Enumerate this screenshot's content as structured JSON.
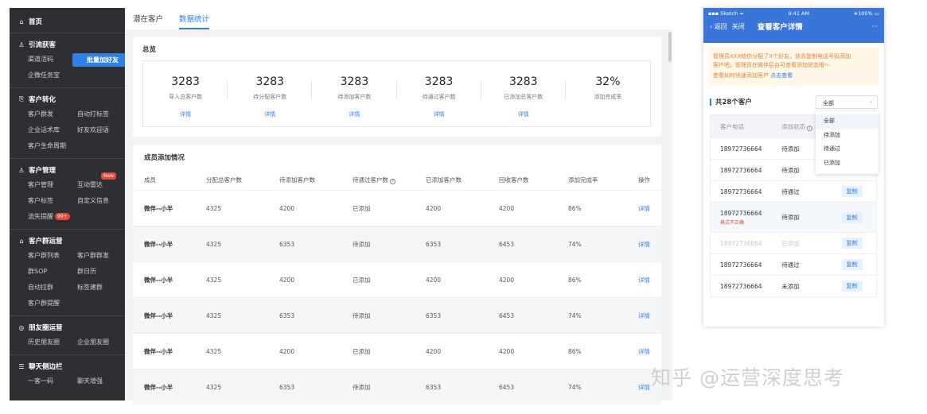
{
  "sidebar": {
    "home": "首页",
    "sections": [
      {
        "title": "引流获客",
        "icon": "person-add-icon",
        "items": [
          "渠道活码",
          "批量加好友",
          "企微任务宝"
        ],
        "active": 1
      },
      {
        "title": "客户转化",
        "icon": "convert-icon",
        "items": [
          "客户群发",
          "自动打标签",
          "企业话术库",
          "好友欢迎语",
          "客户生命周期"
        ]
      },
      {
        "title": "客户管理",
        "icon": "person-icon",
        "items": [
          "客户管理",
          "互动雷达",
          "客户标签",
          "自定义信息",
          "流失提醒"
        ],
        "badge_new": "New",
        "badge_count": "99+"
      },
      {
        "title": "客户群运营",
        "icon": "home-icon",
        "items": [
          "客户群列表",
          "客户群群发",
          "群SOP",
          "群日历",
          "自动拉群",
          "标签建群",
          "客户群提醒"
        ]
      },
      {
        "title": "朋友圈运营",
        "icon": "moments-icon",
        "items": [
          "历史朋友圈",
          "企业朋友圈"
        ]
      },
      {
        "title": "聊天侧边栏",
        "icon": "sidebar-icon",
        "items": [
          "一客一码",
          "聊天增强"
        ]
      }
    ]
  },
  "tabs": [
    "潜在客户",
    "数据统计"
  ],
  "overview": {
    "title": "总览",
    "stats": [
      {
        "value": "3283",
        "label": "导入总客户数",
        "link": "详情"
      },
      {
        "value": "3283",
        "label": "待分配客户数",
        "link": "详情"
      },
      {
        "value": "3283",
        "label": "待添加客户数",
        "link": "详情"
      },
      {
        "value": "3283",
        "label": "待通过客户数",
        "link": "详情"
      },
      {
        "value": "3283",
        "label": "已添加总客户数",
        "link": "详情"
      },
      {
        "value": "32%",
        "label": "添加完成率",
        "link": ""
      }
    ]
  },
  "members": {
    "title": "成员添加情况",
    "headers": [
      "成员",
      "分配总客户数",
      "待添加客户数",
      "待通过客户数",
      "已添加客户数",
      "回收客户数",
      "添加完成率",
      "操作"
    ],
    "rows": [
      [
        "微伴--小半",
        "4325",
        "4200",
        "已添加",
        "4200",
        "4200",
        "86%",
        "详情"
      ],
      [
        "微伴--小半",
        "4325",
        "6353",
        "待添加",
        "6353",
        "6453",
        "74%",
        "详情"
      ],
      [
        "微伴--小半",
        "4325",
        "4200",
        "已添加",
        "4200",
        "4200",
        "86%",
        "详情"
      ],
      [
        "微伴--小半",
        "4325",
        "6353",
        "待添加",
        "6353",
        "6453",
        "74%",
        "详情"
      ],
      [
        "微伴--小半",
        "4325",
        "4200",
        "已添加",
        "4200",
        "4200",
        "86%",
        "详情"
      ],
      [
        "微伴--小半",
        "4325",
        "6353",
        "待添加",
        "6353",
        "6453",
        "74%",
        "详情"
      ]
    ]
  },
  "phone": {
    "carrier": "Sketch",
    "time": "9:41 AM",
    "battery": "100%",
    "back": "返回",
    "close": "关闭",
    "title": "查看客户详情",
    "more": "···",
    "notice_line1": "管理员XXX给你分配了X个好友，快去复制电话号码添加",
    "notice_line2": "客户吧，管理员在微伴后台可查看添加状态哦～",
    "notice_q": "查看如何快速添加客户",
    "notice_link": "点击查看",
    "count": "共28个客户",
    "filter": "全部",
    "filter_options": [
      "全部",
      "待添加",
      "待通过",
      "已添加"
    ],
    "col_phone": "客户电话",
    "col_status": "添加状态",
    "copy": "复制",
    "error": "格式不正确",
    "rows": [
      {
        "phone": "18972736664",
        "status": "待添加"
      },
      {
        "phone": "18972736664",
        "status": "待添加"
      },
      {
        "phone": "18972736664",
        "status": "待通过"
      },
      {
        "phone": "18972736664",
        "status": "待添加"
      },
      {
        "phone": "18972736664",
        "status": "已添加"
      },
      {
        "phone": "18972736664",
        "status": "待通过"
      },
      {
        "phone": "18972736664",
        "status": "未添加"
      }
    ]
  },
  "watermark": "知乎 @运营深度思考"
}
